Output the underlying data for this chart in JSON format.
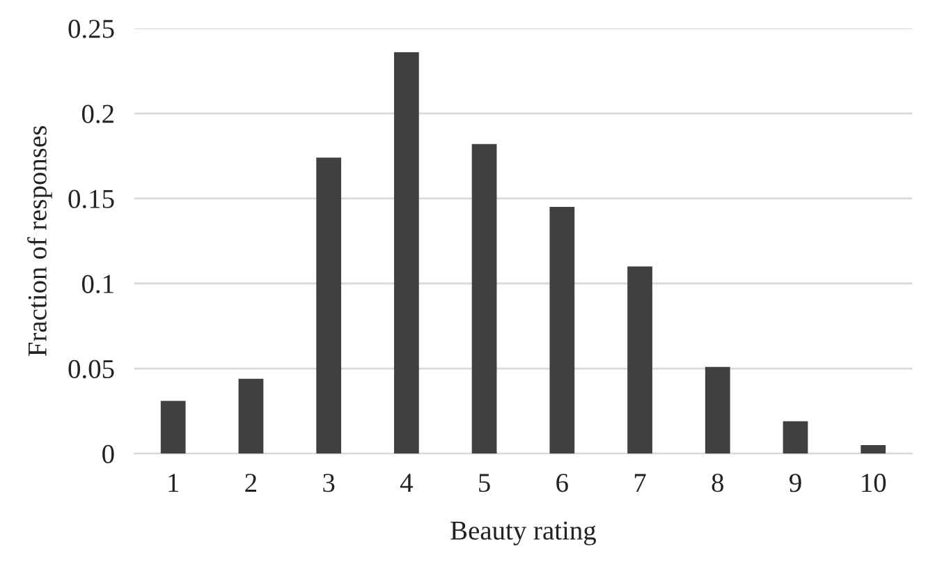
{
  "chart_data": {
    "type": "bar",
    "xlabel": "Beauty rating",
    "ylabel": "Fraction of responses",
    "categories": [
      "1",
      "2",
      "3",
      "4",
      "5",
      "6",
      "7",
      "8",
      "9",
      "10"
    ],
    "values": [
      0.031,
      0.044,
      0.174,
      0.236,
      0.182,
      0.145,
      0.11,
      0.051,
      0.019,
      0.005
    ],
    "color": "#404040",
    "ylim": [
      0,
      0.25
    ],
    "yticks": [
      0,
      0.05,
      0.1,
      0.15,
      0.2,
      0.25
    ],
    "grid": "y"
  }
}
